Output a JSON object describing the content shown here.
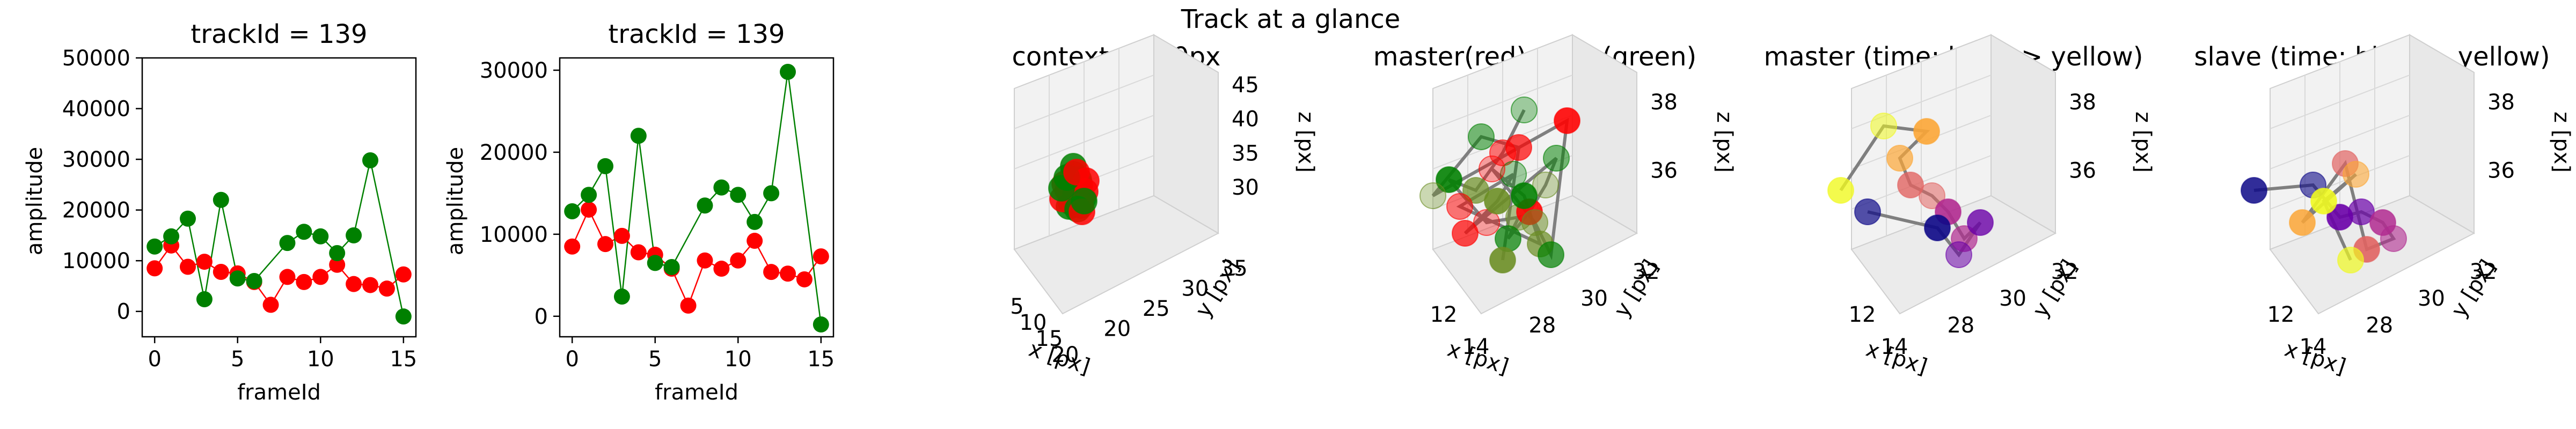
{
  "figure": {
    "suptitle": "Track at a glance"
  },
  "chart_data": [
    {
      "type": "line",
      "title": "trackId = 139",
      "xlabel": "frameId",
      "ylabel": "amplitude",
      "xlim": [
        -0.75,
        15.75
      ],
      "ylim": [
        -5000,
        50000
      ],
      "xticks": [
        0,
        5,
        10,
        15
      ],
      "yticks": [
        0,
        10000,
        20000,
        30000,
        40000,
        50000
      ],
      "x": [
        0,
        1,
        2,
        3,
        4,
        5,
        6,
        7,
        8,
        9,
        10,
        11,
        12,
        13,
        14,
        15
      ],
      "series": [
        {
          "color": "#ff0000",
          "values": [
            8500,
            13000,
            8800,
            9800,
            7800,
            7500,
            5800,
            1300,
            6800,
            5800,
            6800,
            9200,
            5400,
            5200,
            4500,
            7300
          ]
        },
        {
          "color": "#008000",
          "values": [
            12800,
            14800,
            18300,
            2400,
            22000,
            6500,
            6000,
            null,
            13500,
            15700,
            14800,
            11500,
            15000,
            29800,
            null,
            -1000
          ]
        }
      ]
    },
    {
      "type": "line",
      "title": "trackId = 139",
      "xlabel": "frameId",
      "ylabel": "amplitude",
      "xlim": [
        -0.75,
        15.75
      ],
      "ylim": [
        -2500,
        31500
      ],
      "xticks": [
        0,
        5,
        10,
        15
      ],
      "yticks": [
        0,
        10000,
        20000,
        30000
      ],
      "x": [
        0,
        1,
        2,
        3,
        4,
        5,
        6,
        7,
        8,
        9,
        10,
        11,
        12,
        13,
        14,
        15
      ],
      "series": [
        {
          "color": "#ff0000",
          "values": [
            8500,
            13000,
            8800,
            9800,
            7800,
            7500,
            5800,
            1300,
            6800,
            5800,
            6800,
            9200,
            5400,
            5200,
            4500,
            7300
          ]
        },
        {
          "color": "#008000",
          "values": [
            12800,
            14800,
            18300,
            2400,
            22000,
            6500,
            6000,
            null,
            13500,
            15700,
            14800,
            11500,
            15000,
            29800,
            null,
            -1000
          ]
        }
      ]
    },
    {
      "type": "scatter3d",
      "title": "context +- 10px",
      "xlabel": "x [px]",
      "ylabel": "y [px]",
      "zlabel": "z [px]",
      "xticks": [
        "5",
        "10",
        "15",
        "20"
      ],
      "yticks": [
        "20",
        "25",
        "30",
        "35"
      ],
      "zticks": [
        "30",
        "35",
        "40",
        "45"
      ],
      "groups": [
        {
          "color": "#ff0000",
          "count": 10
        },
        {
          "color": "#008000",
          "count": 10
        }
      ]
    },
    {
      "type": "scatter3d",
      "title": "master(red) slave(green)",
      "xlabel": "x [px]",
      "ylabel": "y [px]",
      "zlabel": "z [px]",
      "xticks": [
        "12",
        "14"
      ],
      "yticks": [
        "28",
        "30",
        "32"
      ],
      "zticks": [
        "36",
        "38"
      ],
      "groups": [
        {
          "color": "#ff0000",
          "count": 12
        },
        {
          "color": "#008000",
          "count": 12
        }
      ]
    },
    {
      "type": "scatter3d",
      "title": "master (time: blue -> yellow)",
      "xlabel": "x [px]",
      "ylabel": "y [px]",
      "zlabel": "z [px]",
      "xticks": [
        "12",
        "14"
      ],
      "yticks": [
        "28",
        "30",
        "32"
      ],
      "zticks": [
        "36",
        "38"
      ],
      "colormap": [
        "#0d0887",
        "#6a00a8",
        "#b12a90",
        "#e16462",
        "#fca636",
        "#f0f921"
      ]
    },
    {
      "type": "scatter3d",
      "title": "slave (time: blue -> yellow)",
      "xlabel": "x [px]",
      "ylabel": "y [px]",
      "zlabel": "z [px]",
      "xticks": [
        "12",
        "14"
      ],
      "yticks": [
        "28",
        "30",
        "32"
      ],
      "zticks": [
        "36",
        "38"
      ],
      "colormap": [
        "#0d0887",
        "#6a00a8",
        "#b12a90",
        "#e16462",
        "#fca636",
        "#f0f921"
      ]
    }
  ]
}
